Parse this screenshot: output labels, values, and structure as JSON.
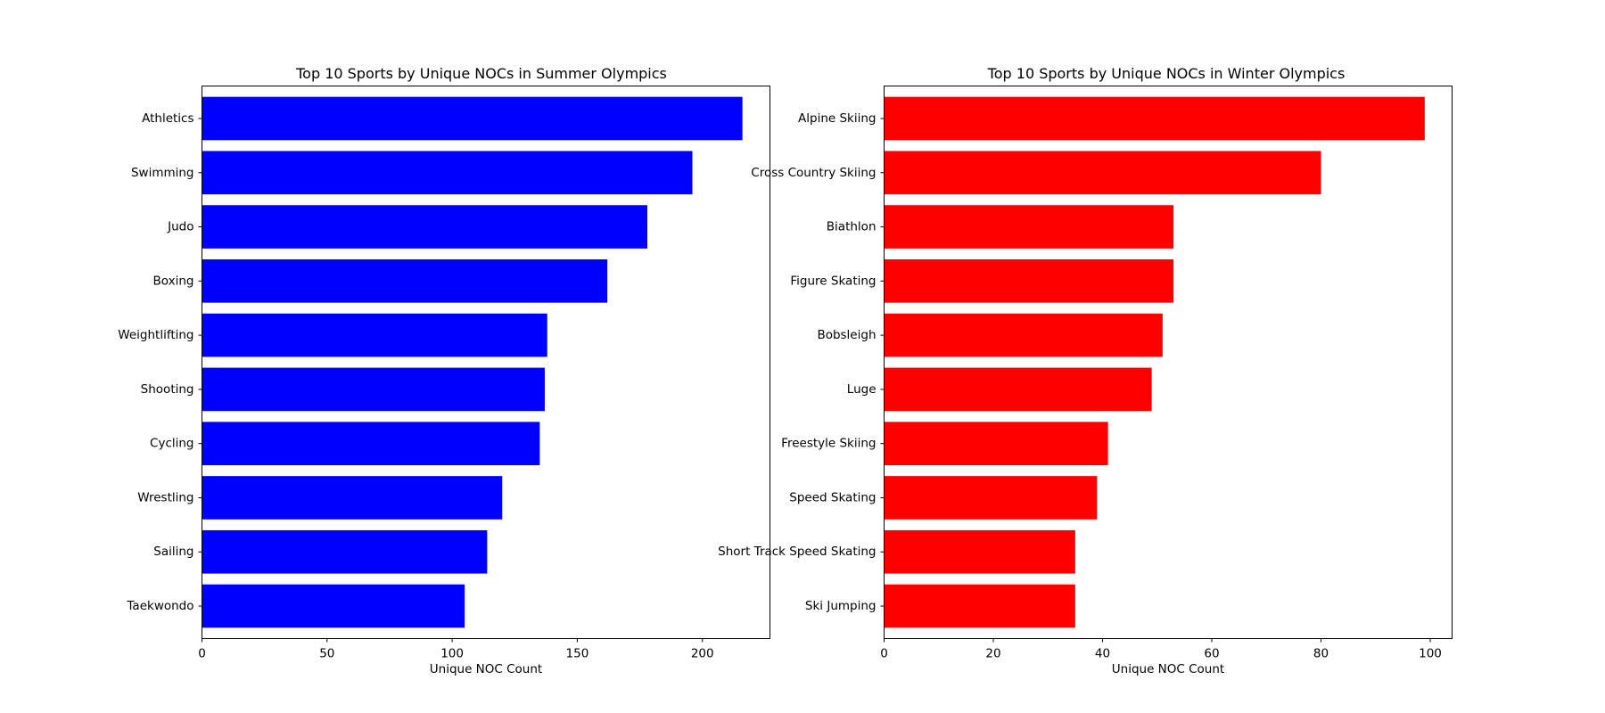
{
  "chart_data": [
    {
      "type": "bar",
      "orientation": "horizontal",
      "title": "Top 10 Sports by Unique NOCs in Summer Olympics",
      "xlabel": "Unique NOC Count",
      "ylabel": "",
      "categories": [
        "Athletics",
        "Swimming",
        "Judo",
        "Boxing",
        "Weightlifting",
        "Shooting",
        "Cycling",
        "Wrestling",
        "Sailing",
        "Taekwondo"
      ],
      "values": [
        216,
        196,
        178,
        162,
        138,
        137,
        135,
        120,
        114,
        105
      ],
      "xlim": [
        0,
        227
      ],
      "xticks": [
        0,
        50,
        100,
        150,
        200
      ],
      "color": "#0000ff",
      "grid": false
    },
    {
      "type": "bar",
      "orientation": "horizontal",
      "title": "Top 10 Sports by Unique NOCs in Winter Olympics",
      "xlabel": "Unique NOC Count",
      "ylabel": "",
      "categories": [
        "Alpine Skiing",
        "Cross Country Skiing",
        "Biathlon",
        "Figure Skating",
        "Bobsleigh",
        "Luge",
        "Freestyle Skiing",
        "Speed Skating",
        "Short Track Speed Skating",
        "Ski Jumping"
      ],
      "values": [
        99,
        80,
        53,
        53,
        51,
        49,
        41,
        39,
        35,
        35
      ],
      "xlim": [
        0,
        104
      ],
      "xticks": [
        0,
        20,
        40,
        60,
        80,
        100
      ],
      "color": "#ff0000",
      "grid": false
    }
  ]
}
